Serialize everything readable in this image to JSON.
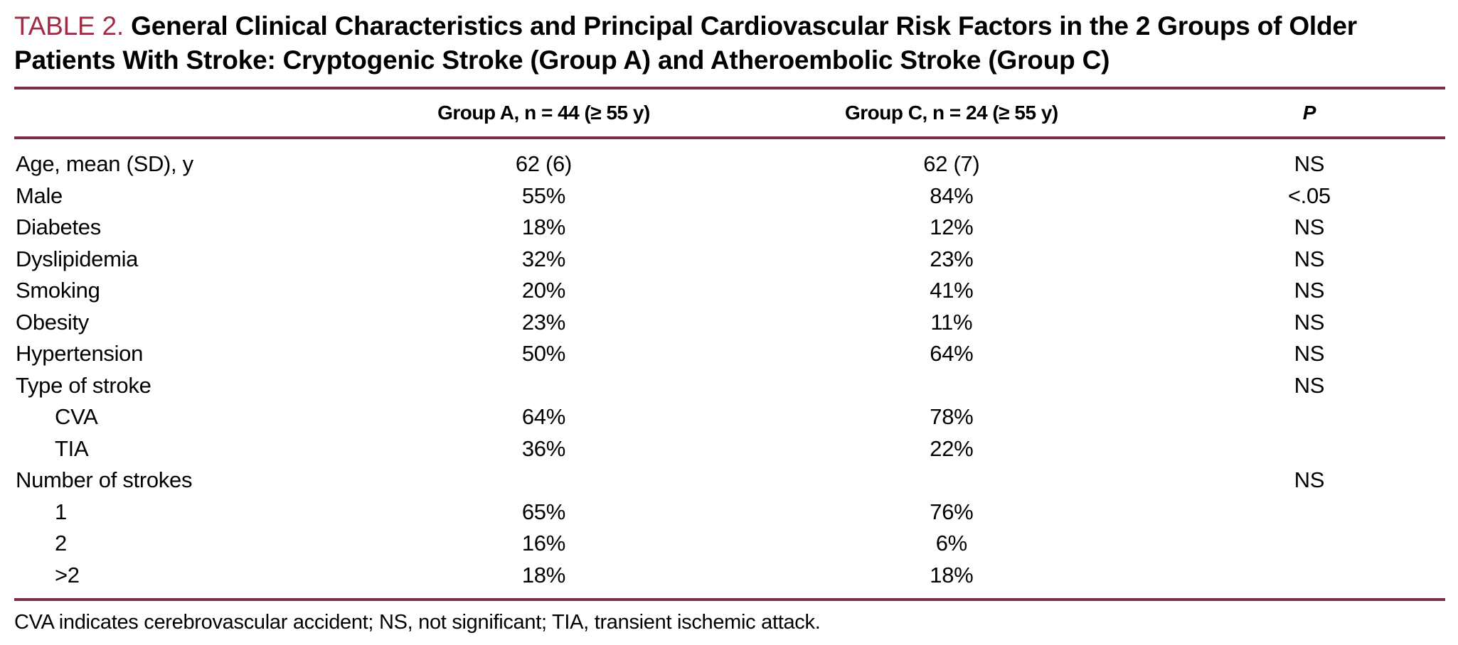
{
  "title": {
    "label": "TABLE 2.",
    "text": "General Clinical Characteristics and Principal Cardiovascular Risk Factors in the 2 Groups of Older Patients With Stroke: Cryptogenic Stroke (Group A) and Atheroembolic Stroke (Group C)"
  },
  "colors": {
    "accent_label": "#a02c46",
    "rule": "#7d2c45",
    "text": "#000000",
    "background": "#ffffff"
  },
  "table": {
    "columns": [
      "",
      "Group A, n = 44 (≥ 55 y)",
      "Group C, n = 24 (≥ 55 y)",
      "P"
    ],
    "rows": [
      {
        "label": "Age, mean (SD), y",
        "indent": false,
        "group_a": "62 (6)",
        "group_c": "62 (7)",
        "p": "NS"
      },
      {
        "label": "Male",
        "indent": false,
        "group_a": "55%",
        "group_c": "84%",
        "p": "<.05"
      },
      {
        "label": "Diabetes",
        "indent": false,
        "group_a": "18%",
        "group_c": "12%",
        "p": "NS"
      },
      {
        "label": "Dyslipidemia",
        "indent": false,
        "group_a": "32%",
        "group_c": "23%",
        "p": "NS"
      },
      {
        "label": "Smoking",
        "indent": false,
        "group_a": "20%",
        "group_c": "41%",
        "p": "NS"
      },
      {
        "label": "Obesity",
        "indent": false,
        "group_a": "23%",
        "group_c": "11%",
        "p": "NS"
      },
      {
        "label": "Hypertension",
        "indent": false,
        "group_a": "50%",
        "group_c": "64%",
        "p": "NS"
      },
      {
        "label": "Type of stroke",
        "indent": false,
        "group_a": "",
        "group_c": "",
        "p": "NS"
      },
      {
        "label": "CVA",
        "indent": true,
        "group_a": "64%",
        "group_c": "78%",
        "p": ""
      },
      {
        "label": "TIA",
        "indent": true,
        "group_a": "36%",
        "group_c": "22%",
        "p": ""
      },
      {
        "label": "Number of strokes",
        "indent": false,
        "group_a": "",
        "group_c": "",
        "p": "NS"
      },
      {
        "label": "1",
        "indent": true,
        "group_a": "65%",
        "group_c": "76%",
        "p": ""
      },
      {
        "label": "2",
        "indent": true,
        "group_a": "16%",
        "group_c": "6%",
        "p": ""
      },
      {
        "label": ">2",
        "indent": true,
        "group_a": "18%",
        "group_c": "18%",
        "p": ""
      }
    ]
  },
  "footnote": "CVA indicates cerebrovascular accident; NS, not significant; TIA, transient ischemic attack."
}
